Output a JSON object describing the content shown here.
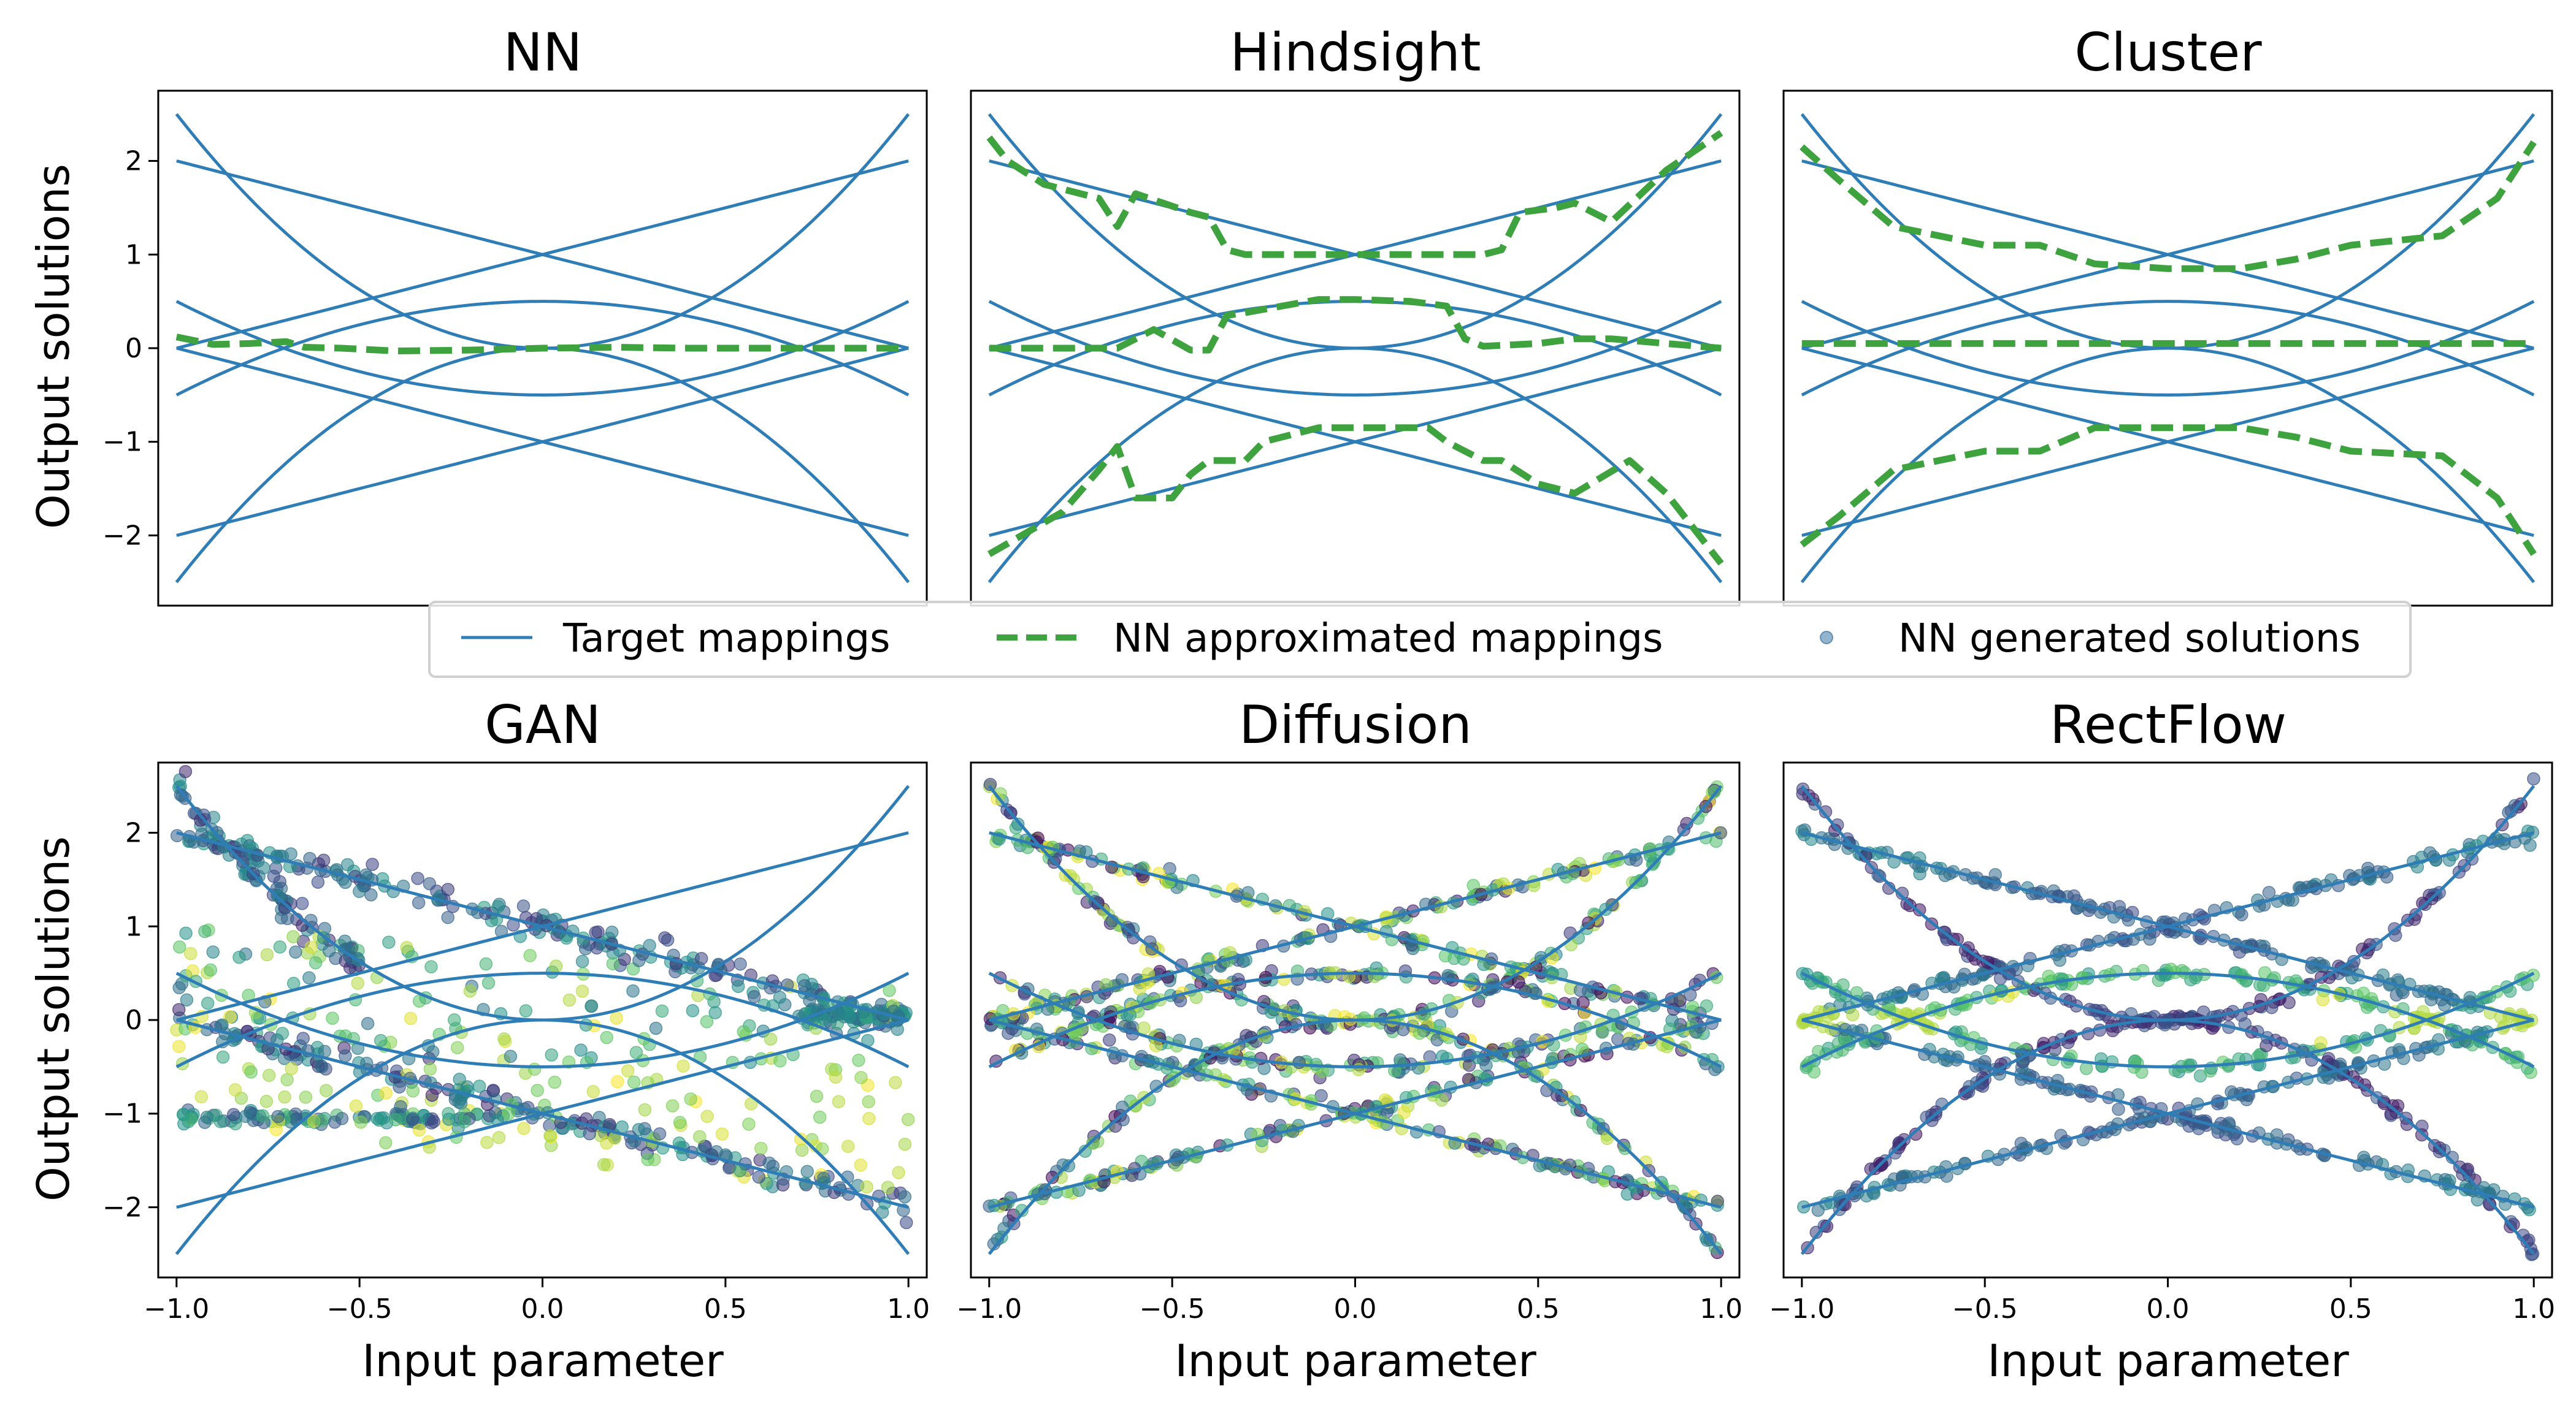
{
  "legend": {
    "target_label": "Target mappings",
    "approx_label": "NN approximated mappings",
    "generated_label": "NN generated solutions",
    "placement": "center, between rows"
  },
  "colors": {
    "target": "#2f7db6",
    "approx": "#3ea33e",
    "colormap": "viridis",
    "background": "#ffffff"
  },
  "target_mappings": [
    {
      "type": "parabola",
      "formula": "2.5x^2"
    },
    {
      "type": "parabola",
      "formula": "-2.5x^2"
    },
    {
      "type": "parabola",
      "formula": "0.5-x^2"
    },
    {
      "type": "parabola",
      "formula": "x^2-0.5"
    },
    {
      "type": "line",
      "formula": "1+x"
    },
    {
      "type": "line",
      "formula": "1-x"
    },
    {
      "type": "line",
      "formula": "-1+x"
    },
    {
      "type": "line",
      "formula": "-1-x"
    }
  ],
  "chart_data": [
    {
      "type": "line",
      "title": "NN",
      "ylabel": "Output solutions",
      "xlabel": "",
      "xlim": [
        -1.05,
        1.05
      ],
      "ylim": [
        -2.75,
        2.75
      ],
      "yticks": [
        "2",
        "1",
        "0",
        "−1",
        "−2"
      ],
      "ytick_values": [
        2,
        1,
        0,
        -1,
        -2
      ],
      "xticks": [],
      "xtick_values": [],
      "approx_series": [
        {
          "x": [
            -1.0,
            -0.9,
            -0.8,
            -0.7,
            -0.65,
            -0.55,
            -0.4,
            -0.2,
            0.0,
            0.2,
            0.4,
            0.6,
            0.8,
            1.0
          ],
          "y": [
            0.12,
            0.04,
            0.05,
            0.07,
            0.01,
            0.0,
            -0.03,
            -0.02,
            0.0,
            0.01,
            0.0,
            0.0,
            0.0,
            0.0
          ]
        }
      ]
    },
    {
      "type": "line",
      "title": "Hindsight",
      "ylabel": "",
      "xlabel": "",
      "xlim": [
        -1.05,
        1.05
      ],
      "ylim": [
        -2.75,
        2.75
      ],
      "yticks": [],
      "ytick_values": [],
      "xticks": [],
      "xtick_values": [],
      "approx_series": [
        {
          "x": [
            -1.0,
            -0.95,
            -0.85,
            -0.7,
            -0.65,
            -0.6,
            -0.45,
            -0.4,
            -0.35,
            -0.3,
            0.0,
            0.25,
            0.35,
            0.4,
            0.45,
            0.55,
            0.6,
            0.7,
            0.85,
            1.0
          ],
          "y": [
            2.25,
            2.0,
            1.75,
            1.6,
            1.3,
            1.65,
            1.45,
            1.4,
            1.05,
            1.0,
            1.0,
            1.0,
            1.0,
            1.05,
            1.45,
            1.5,
            1.55,
            1.35,
            1.9,
            2.3
          ]
        },
        {
          "x": [
            -1.0,
            -0.8,
            -0.65,
            -0.55,
            -0.45,
            -0.4,
            -0.35,
            -0.3,
            -0.1,
            0.0,
            0.15,
            0.25,
            0.3,
            0.35,
            0.5,
            0.6,
            0.7,
            0.85,
            1.0
          ],
          "y": [
            0.0,
            0.0,
            0.0,
            0.2,
            -0.02,
            -0.02,
            0.35,
            0.38,
            0.52,
            0.52,
            0.5,
            0.45,
            0.1,
            0.02,
            0.05,
            0.1,
            0.1,
            0.05,
            0.0
          ]
        },
        {
          "x": [
            -1.0,
            -0.8,
            -0.7,
            -0.65,
            -0.6,
            -0.5,
            -0.45,
            -0.4,
            -0.3,
            -0.25,
            -0.1,
            0.0,
            0.2,
            0.25,
            0.35,
            0.4,
            0.5,
            0.6,
            0.75,
            0.85,
            1.0
          ],
          "y": [
            -2.2,
            -1.75,
            -1.3,
            -1.05,
            -1.6,
            -1.6,
            -1.35,
            -1.2,
            -1.2,
            -1.0,
            -0.85,
            -0.85,
            -0.85,
            -1.0,
            -1.2,
            -1.2,
            -1.45,
            -1.55,
            -1.2,
            -1.55,
            -2.3
          ]
        }
      ]
    },
    {
      "type": "line",
      "title": "Cluster",
      "ylabel": "",
      "xlabel": "",
      "xlim": [
        -1.05,
        1.05
      ],
      "ylim": [
        -2.75,
        2.75
      ],
      "yticks": [],
      "ytick_values": [],
      "xticks": [],
      "xtick_values": [],
      "approx_series": [
        {
          "x": [
            -1.0,
            -0.9,
            -0.75,
            -0.5,
            -0.35,
            -0.2,
            0.0,
            0.2,
            0.35,
            0.5,
            0.75,
            0.9,
            1.0
          ],
          "y": [
            2.15,
            1.8,
            1.3,
            1.1,
            1.1,
            0.9,
            0.85,
            0.85,
            0.95,
            1.1,
            1.2,
            1.6,
            2.2
          ]
        },
        {
          "x": [
            -1.0,
            -0.5,
            0.0,
            0.5,
            1.0
          ],
          "y": [
            0.05,
            0.05,
            0.05,
            0.05,
            0.05
          ]
        },
        {
          "x": [
            -1.0,
            -0.9,
            -0.75,
            -0.5,
            -0.35,
            -0.2,
            0.0,
            0.2,
            0.35,
            0.5,
            0.75,
            0.9,
            1.0
          ],
          "y": [
            -2.1,
            -1.8,
            -1.3,
            -1.1,
            -1.1,
            -0.85,
            -0.85,
            -0.85,
            -0.95,
            -1.1,
            -1.15,
            -1.6,
            -2.2
          ]
        }
      ]
    },
    {
      "type": "scatter",
      "title": "GAN",
      "ylabel": "Output solutions",
      "xlabel": "Input parameter",
      "xlim": [
        -1.05,
        1.05
      ],
      "ylim": [
        -2.75,
        2.75
      ],
      "yticks": [
        "2",
        "1",
        "0",
        "−1",
        "−2"
      ],
      "ytick_values": [
        2,
        1,
        0,
        -1,
        -2
      ],
      "xticks": [
        "−1.0",
        "−0.5",
        "0.0",
        "0.5",
        "1.0"
      ],
      "xtick_values": [
        -1.0,
        -0.5,
        0.0,
        0.5,
        1.0
      ],
      "scatter": {
        "point_count": 900,
        "sample_mappings": [
          "2.5x^2 (x<0)",
          "1-x",
          "-1-x",
          "-1",
          "0.5-x^2",
          "cloud"
        ],
        "note": "points concentrated on decreasing branches; diffuse cloud between y=-1.5 and y=1"
      }
    },
    {
      "type": "scatter",
      "title": "Diffusion",
      "ylabel": "",
      "xlabel": "Input parameter",
      "xlim": [
        -1.05,
        1.05
      ],
      "ylim": [
        -2.75,
        2.75
      ],
      "yticks": [],
      "ytick_values": [],
      "xticks": [
        "−1.0",
        "−0.5",
        "0.0",
        "0.5",
        "1.0"
      ],
      "xtick_values": [
        -1.0,
        -0.5,
        0.0,
        0.5,
        1.0
      ],
      "scatter": {
        "point_count": 1100,
        "sample_mappings": [
          "all eight target mappings"
        ],
        "note": "points lie along every target mapping, mixed colors"
      }
    },
    {
      "type": "scatter",
      "title": "RectFlow",
      "ylabel": "",
      "xlabel": "Input parameter",
      "xlim": [
        -1.05,
        1.05
      ],
      "ylim": [
        -2.75,
        2.75
      ],
      "yticks": [],
      "ytick_values": [],
      "xticks": [
        "−1.0",
        "−0.5",
        "0.0",
        "0.5",
        "1.0"
      ],
      "xtick_values": [
        -1.0,
        -0.5,
        0.0,
        0.5,
        1.0
      ],
      "scatter": {
        "point_count": 1100,
        "sample_mappings": [
          "all eight target mappings"
        ],
        "note": "color ordered by branch: outer branches dark, inner branches yellow-green"
      }
    }
  ]
}
